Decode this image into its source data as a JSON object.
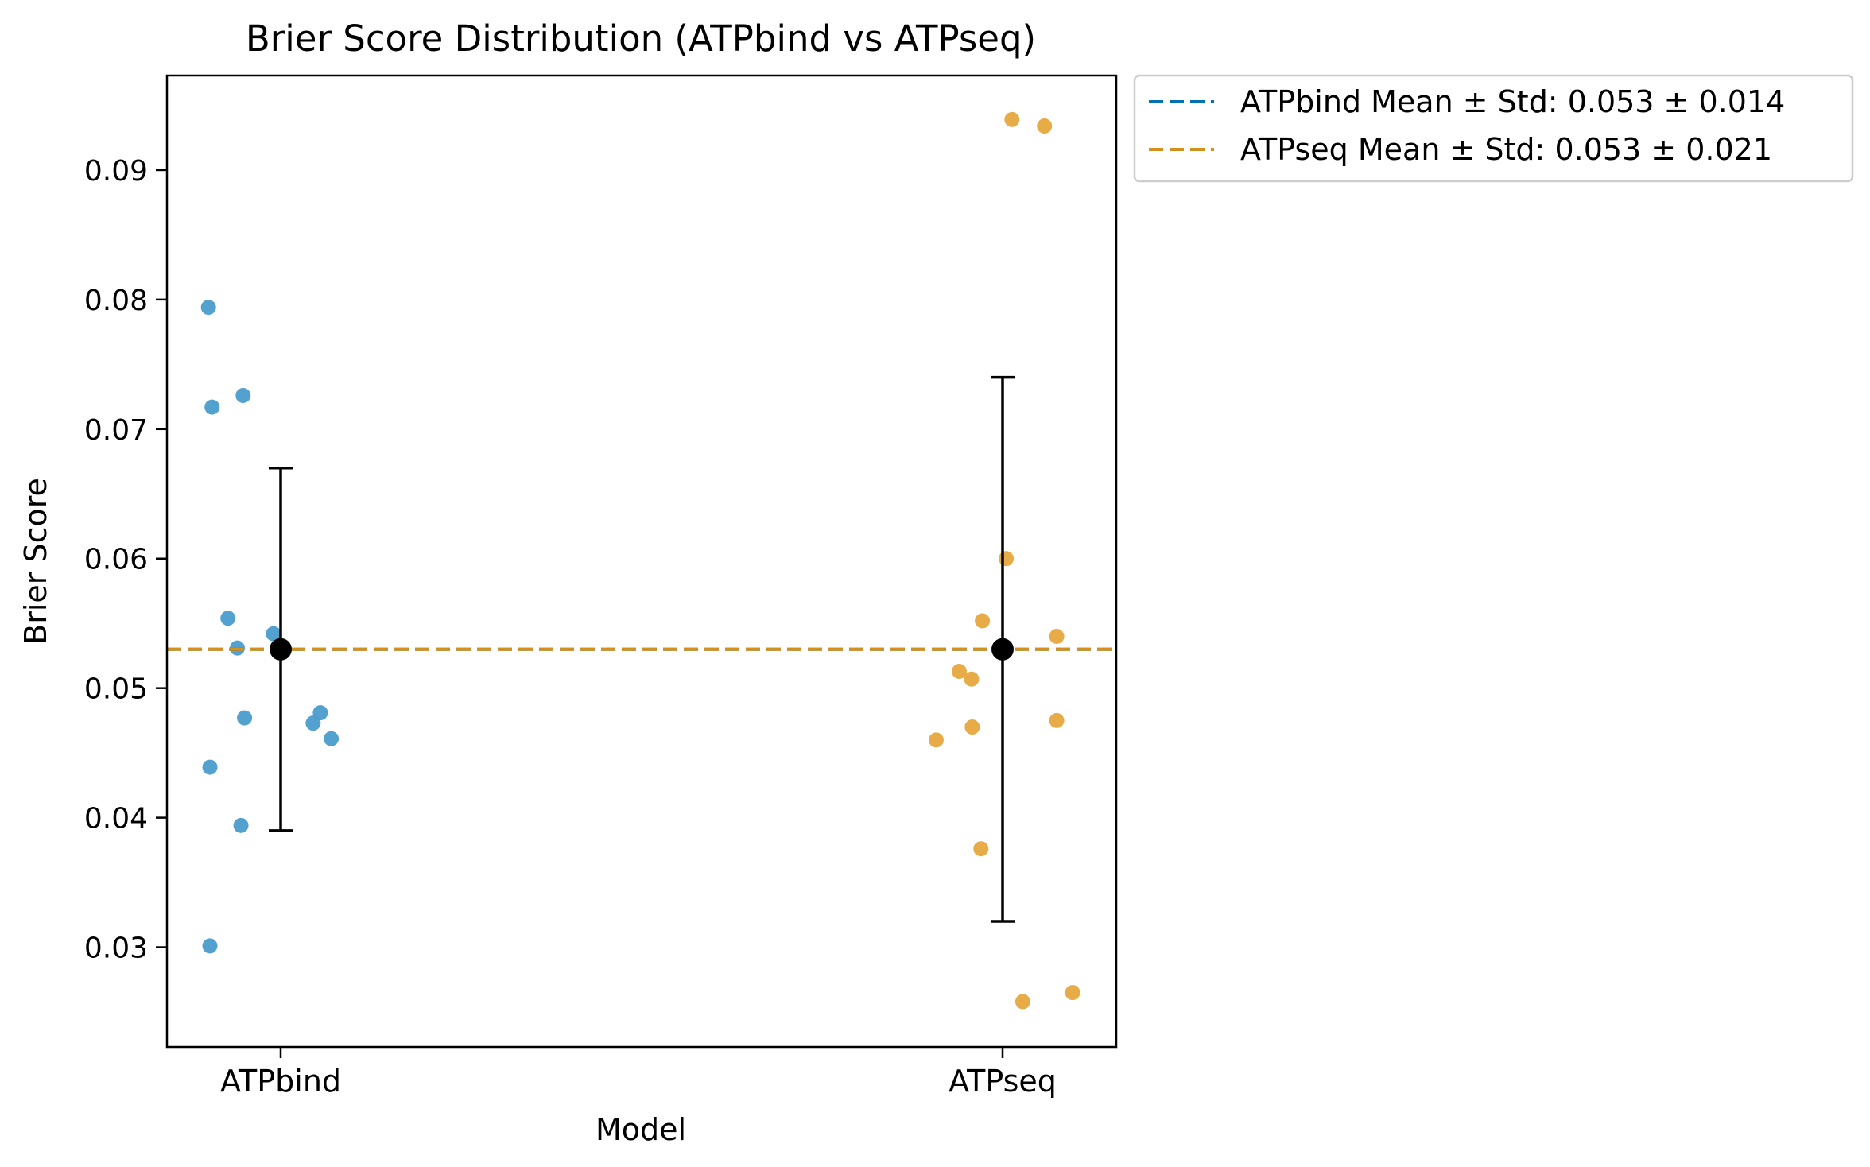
{
  "chart_data": {
    "type": "scatter",
    "title": "Brier Score Distribution (ATPbind vs ATPseq)",
    "xlabel": "Model",
    "ylabel": "Brier Score",
    "categories": [
      "ATPbind",
      "ATPseq"
    ],
    "ylim": [
      0.0223,
      0.0973
    ],
    "yticks": [
      0.03,
      0.04,
      0.05,
      0.06,
      0.07,
      0.08,
      0.09
    ],
    "ytick_labels": [
      "0.03",
      "0.04",
      "0.05",
      "0.06",
      "0.07",
      "0.08",
      "0.09"
    ],
    "grid": false,
    "legend_position": "outside-top-right",
    "series": [
      {
        "name": "ATPbind",
        "category": "ATPbind",
        "color": "#4a9ccb",
        "line_color": "#0072b2",
        "points": [
          {
            "offset": -0.1,
            "y": 0.0794
          },
          {
            "offset": -0.052,
            "y": 0.0726
          },
          {
            "offset": -0.095,
            "y": 0.0717
          },
          {
            "offset": -0.073,
            "y": 0.0554
          },
          {
            "offset": -0.01,
            "y": 0.0542
          },
          {
            "offset": -0.06,
            "y": 0.0531
          },
          {
            "offset": 0.055,
            "y": 0.0481
          },
          {
            "offset": -0.05,
            "y": 0.0477
          },
          {
            "offset": 0.045,
            "y": 0.0473
          },
          {
            "offset": 0.07,
            "y": 0.0461
          },
          {
            "offset": -0.098,
            "y": 0.0439
          },
          {
            "offset": -0.055,
            "y": 0.0394
          },
          {
            "offset": -0.098,
            "y": 0.0301
          }
        ],
        "mean": 0.053,
        "std": 0.014,
        "legend_label": "ATPbind Mean ± Std: 0.053 ± 0.014"
      },
      {
        "name": "ATPseq",
        "category": "ATPseq",
        "color": "#e6a83e",
        "line_color": "#d4901b",
        "points": [
          {
            "offset": 0.013,
            "y": 0.0939
          },
          {
            "offset": 0.058,
            "y": 0.0934
          },
          {
            "offset": 0.005,
            "y": 0.06
          },
          {
            "offset": -0.028,
            "y": 0.0552
          },
          {
            "offset": 0.075,
            "y": 0.054
          },
          {
            "offset": -0.06,
            "y": 0.0513
          },
          {
            "offset": -0.043,
            "y": 0.0507
          },
          {
            "offset": 0.075,
            "y": 0.0475
          },
          {
            "offset": -0.042,
            "y": 0.047
          },
          {
            "offset": -0.092,
            "y": 0.046
          },
          {
            "offset": -0.03,
            "y": 0.0376
          },
          {
            "offset": 0.097,
            "y": 0.0265
          },
          {
            "offset": 0.028,
            "y": 0.0258
          }
        ],
        "mean": 0.053,
        "std": 0.021,
        "legend_label": "ATPseq Mean ± Std: 0.053 ± 0.021"
      }
    ]
  }
}
